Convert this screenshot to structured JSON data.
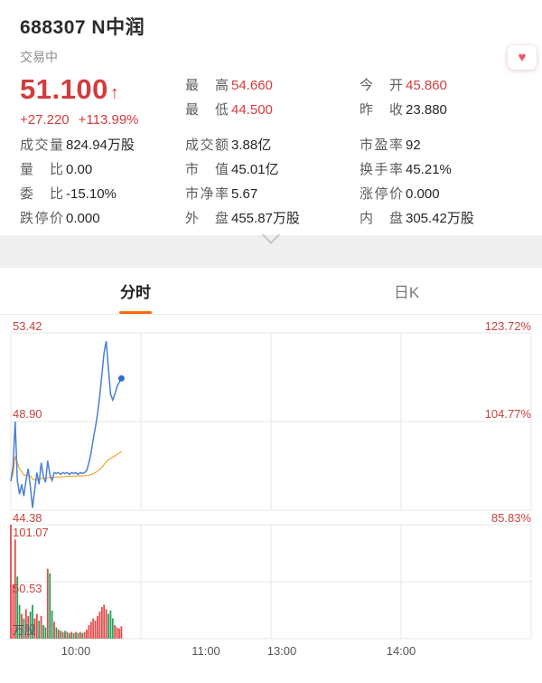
{
  "header": {
    "code_and_name": "688307  N中润",
    "status": "交易中"
  },
  "favorite": {
    "icon": "heart",
    "glyph": "♥"
  },
  "quote": {
    "price": "51.100",
    "direction": "↑",
    "change": "+27.220",
    "change_percent": "+113.99%",
    "high": {
      "label": "最 高",
      "value": "54.660"
    },
    "low": {
      "label": "最 低",
      "value": "44.500"
    },
    "open": {
      "label": "今 开",
      "value": "45.860"
    },
    "prev_close": {
      "label": "昨 收",
      "value": "23.880"
    }
  },
  "stats": {
    "volume": {
      "label": "成交量",
      "value": "824.94万股"
    },
    "turnover": {
      "label": "成交额",
      "value": "3.88亿"
    },
    "pe": {
      "label": "市盈率",
      "value": "92"
    },
    "volume_ratio": {
      "label": "量 比",
      "value": "0.00"
    },
    "market_cap": {
      "label": "市 值",
      "value": "45.01亿"
    },
    "turnover_rate": {
      "label": "换手率",
      "value": "45.21%"
    },
    "bid_ratio": {
      "label": "委 比",
      "value": "-15.10%"
    },
    "pb": {
      "label": "市净率",
      "value": "5.67"
    },
    "limit_up": {
      "label": "涨停价",
      "value": "0.000"
    },
    "limit_down": {
      "label": "跌停价",
      "value": "0.000"
    },
    "outer": {
      "label": "外 盘",
      "value": "455.87万股"
    },
    "inner": {
      "label": "内 盘",
      "value": "305.42万股"
    }
  },
  "tabs": {
    "intraday": "分时",
    "daily": "日K"
  },
  "colors": {
    "up_red": "#d43c3c",
    "down_green": "#27a35b",
    "accent_orange": "#ff6a00",
    "line_blue": "#4a7fd4",
    "avg_yellow": "#f0a632"
  },
  "chart_data": {
    "type": "line",
    "panes": [
      "price",
      "volume"
    ],
    "prev_close": 23.88,
    "ylim": [
      44.38,
      53.42
    ],
    "axis_left": [
      "53.42",
      "48.90",
      "44.38"
    ],
    "axis_right": [
      "123.72%",
      "104.77%",
      "85.83%"
    ],
    "vol_axis": [
      "101.07",
      "50.53"
    ],
    "vol_unit": "万股",
    "vol_max": 101.07,
    "session_minutes": 240,
    "grid_minutes": [
      60,
      120,
      180
    ],
    "x_ticks": [
      {
        "label": "10:00",
        "minute": 30
      },
      {
        "label": "11:00",
        "minute": 90
      },
      {
        "label": "13:00",
        "minute": 125
      },
      {
        "label": "14:00",
        "minute": 180
      }
    ],
    "price": [
      45.86,
      46.6,
      48.9,
      45.9,
      45.2,
      45.7,
      45.1,
      45.9,
      46.5,
      45.6,
      44.5,
      45.4,
      46.3,
      45.7,
      46.8,
      46.1,
      45.8,
      46.9,
      46.2,
      45.9,
      46.3,
      46.25,
      46.3,
      46.2,
      46.3,
      46.25,
      46.3,
      46.2,
      46.3,
      46.25,
      46.3,
      46.2,
      46.3,
      46.25,
      46.3,
      46.4,
      46.8,
      47.3,
      48.0,
      48.6,
      49.3,
      50.2,
      51.3,
      52.4,
      53.0,
      51.6,
      50.3,
      50.0,
      50.3,
      50.7,
      50.9,
      51.1
    ],
    "volume": [
      101.07,
      48,
      88,
      55,
      30,
      22,
      18,
      26,
      20,
      24,
      30,
      18,
      22,
      16,
      20,
      12,
      10,
      62,
      58,
      25,
      15,
      10,
      8,
      7,
      6,
      7,
      6,
      5,
      6,
      5,
      6,
      5,
      6,
      5,
      6,
      8,
      12,
      15,
      18,
      16,
      20,
      24,
      28,
      30,
      26,
      22,
      25,
      18,
      12,
      10,
      9,
      11
    ],
    "colors": {
      "line": "#4a7fd4",
      "avg": "#f0a632",
      "up": "#e34a4a",
      "down": "#27a35b",
      "dot": "#2f6fd2"
    }
  }
}
